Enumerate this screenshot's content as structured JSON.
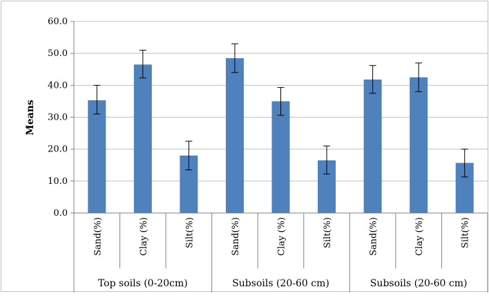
{
  "chart_data": {
    "type": "bar",
    "ylabel": "Means",
    "ylim": [
      0,
      60
    ],
    "yticks": [
      "0.0",
      "10.0",
      "20.0",
      "30.0",
      "40.0",
      "50.0",
      "60.0"
    ],
    "grid": "horizontal",
    "bar_color": "#4f81bd",
    "groups": [
      {
        "label": "Top soils (0-20cm)",
        "categories": [
          "Sand(%)",
          "Clay (%)",
          "Silt(%)"
        ]
      },
      {
        "label": "Subsoils (20-60 cm)",
        "categories": [
          "Sand(%)",
          "Clay (%)",
          "Silt(%)"
        ]
      },
      {
        "label": "Subsoils (20-60 cm)",
        "categories": [
          "Sand(%)",
          "Clay (%)",
          "Silt(%)"
        ]
      }
    ],
    "categories": [
      "Sand(%)",
      "Clay (%)",
      "Silt(%)",
      "Sand(%)",
      "Clay (%)",
      "Silt(%)",
      "Sand(%)",
      "Clay (%)",
      "Silt(%)"
    ],
    "values": [
      35.3,
      46.5,
      18.0,
      48.5,
      35.0,
      16.5,
      41.8,
      42.5,
      15.7
    ],
    "error_low": [
      31.0,
      42.3,
      13.5,
      44.0,
      30.6,
      12.2,
      37.5,
      38.0,
      11.3
    ],
    "error_high": [
      40.0,
      51.0,
      22.5,
      53.0,
      39.3,
      21.0,
      46.2,
      47.0,
      20.0
    ]
  }
}
